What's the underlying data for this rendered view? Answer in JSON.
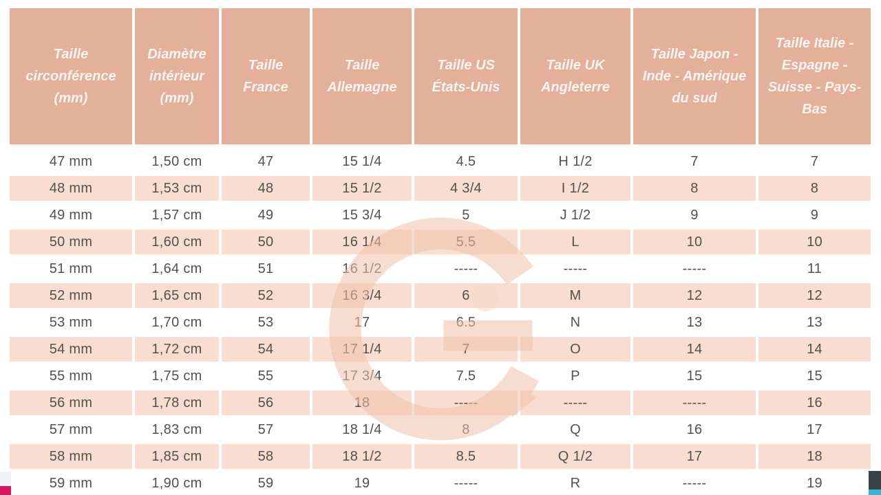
{
  "table": {
    "colors": {
      "header_bg": "#e3b099",
      "header_text": "#fcf5ef",
      "row_bg": "#ffffff",
      "row_alt_bg": "#f8ddd0",
      "cell_text": "#55504c"
    }
  },
  "watermark": {
    "icon": "g-logo-watermark",
    "color": "#efc3ab"
  },
  "page_edge_fragments": {
    "bottom_left_block_color": "#eff1f2",
    "bottom_left_strip_color": "#dc1260",
    "bottom_right_block_color": "#3b4046",
    "bottom_right_strip_color": "#36b7d9"
  },
  "chart_data": {
    "type": "table",
    "title": "",
    "columns": [
      "Taille circonférence (mm)",
      "Diamètre intérieur (mm)",
      "Taille France",
      "Taille Allemagne",
      "Taille US États-Unis",
      "Taille UK Angleterre",
      "Taille Japon - Inde - Amérique du sud",
      "Taille Italie - Espagne - Suisse - Pays-Bas"
    ],
    "rows": [
      [
        "47 mm",
        "1,50 cm",
        "47",
        "15 1/4",
        "4.5",
        "H 1/2",
        "7",
        "7"
      ],
      [
        "48 mm",
        "1,53 cm",
        "48",
        "15 1/2",
        "4 3/4",
        "I 1/2",
        "8",
        "8"
      ],
      [
        "49 mm",
        "1,57 cm",
        "49",
        "15 3/4",
        "5",
        "J 1/2",
        "9",
        "9"
      ],
      [
        "50 mm",
        "1,60 cm",
        "50",
        "16 1/4",
        "5.5",
        "L",
        "10",
        "10"
      ],
      [
        "51 mm",
        "1,64 cm",
        "51",
        "16 1/2",
        "-----",
        "-----",
        "-----",
        "11"
      ],
      [
        "52 mm",
        "1,65 cm",
        "52",
        "16 3/4",
        "6",
        "M",
        "12",
        "12"
      ],
      [
        "53 mm",
        "1,70 cm",
        "53",
        "17",
        "6.5",
        "N",
        "13",
        "13"
      ],
      [
        "54 mm",
        "1,72 cm",
        "54",
        "17 1/4",
        "7",
        "O",
        "14",
        "14"
      ],
      [
        "55 mm",
        "1,75 cm",
        "55",
        "17 3/4",
        "7.5",
        "P",
        "15",
        "15"
      ],
      [
        "56 mm",
        "1,78 cm",
        "56",
        "18",
        "-----",
        "-----",
        "-----",
        "16"
      ],
      [
        "57 mm",
        "1,83 cm",
        "57",
        "18 1/4",
        "8",
        "Q",
        "16",
        "17"
      ],
      [
        "58 mm",
        "1,85 cm",
        "58",
        "18 1/2",
        "8.5",
        "Q 1/2",
        "17",
        "18"
      ],
      [
        "59 mm",
        "1,90 cm",
        "59",
        "19",
        "-----",
        "R",
        "-----",
        "19"
      ]
    ]
  }
}
